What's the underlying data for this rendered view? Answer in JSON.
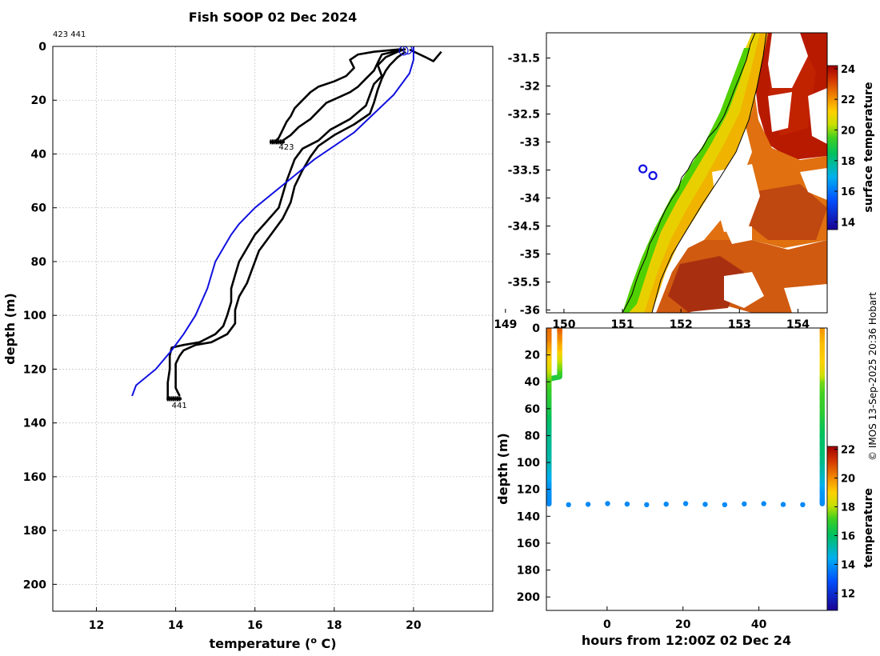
{
  "page": {
    "title": "Fish SOOP 02 Dec 2024",
    "deployment_ids": "423 441",
    "credit": "© IMOS 13-Sep-2025 20:36 Hobart"
  },
  "chart_data": [
    {
      "type": "line",
      "panel": "temperature-profile",
      "xlabel": "temperature (o C)",
      "ylabel": "depth (m)",
      "xlim": [
        10.9,
        22.0
      ],
      "ylim": [
        210,
        0
      ],
      "xticks": [
        "12",
        "14",
        "16",
        "18",
        "20"
      ],
      "yticks": [
        "0",
        "20",
        "40",
        "60",
        "80",
        "100",
        "120",
        "140",
        "160",
        "180",
        "200"
      ],
      "grid": true,
      "colors": {
        "profile": "#000000",
        "climatology": "#1010e0"
      },
      "series": [
        {
          "id": "descent-423",
          "values": [
            [
              19.7,
              1
            ],
            [
              19.0,
              2
            ],
            [
              18.6,
              3
            ],
            [
              18.4,
              5
            ],
            [
              18.5,
              8
            ],
            [
              18.3,
              11
            ],
            [
              18.0,
              13
            ],
            [
              17.6,
              15
            ],
            [
              17.4,
              17
            ],
            [
              17.2,
              20
            ],
            [
              17.0,
              23
            ],
            [
              16.9,
              26
            ],
            [
              16.8,
              28
            ],
            [
              16.7,
              31
            ],
            [
              16.6,
              34
            ],
            [
              16.5,
              35.5
            ]
          ]
        },
        {
          "id": "ascent-423",
          "values": [
            [
              16.7,
              35
            ],
            [
              16.9,
              33
            ],
            [
              17.1,
              30
            ],
            [
              17.4,
              27
            ],
            [
              17.6,
              24
            ],
            [
              17.8,
              21
            ],
            [
              18.1,
              19
            ],
            [
              18.4,
              17
            ],
            [
              18.6,
              15
            ],
            [
              18.8,
              12
            ],
            [
              19.0,
              9
            ],
            [
              19.1,
              6
            ],
            [
              19.2,
              3
            ],
            [
              19.5,
              2
            ],
            [
              19.8,
              1
            ]
          ]
        },
        {
          "id": "descent-441",
          "values": [
            [
              19.8,
              1
            ],
            [
              19.6,
              2
            ],
            [
              19.3,
              4
            ],
            [
              19.1,
              7
            ],
            [
              19.2,
              11
            ],
            [
              19.0,
              14
            ],
            [
              18.9,
              18
            ],
            [
              18.8,
              22
            ],
            [
              18.4,
              27
            ],
            [
              17.9,
              31
            ],
            [
              17.6,
              35
            ],
            [
              17.2,
              38
            ],
            [
              17.0,
              42
            ],
            [
              16.9,
              46
            ],
            [
              16.8,
              50
            ],
            [
              16.7,
              55
            ],
            [
              16.6,
              60
            ],
            [
              16.3,
              65
            ],
            [
              16.0,
              70
            ],
            [
              15.8,
              75
            ],
            [
              15.6,
              80
            ],
            [
              15.5,
              85
            ],
            [
              15.4,
              90
            ],
            [
              15.4,
              95
            ],
            [
              15.3,
              100
            ],
            [
              15.2,
              104
            ],
            [
              15.0,
              107
            ],
            [
              14.6,
              110
            ],
            [
              14.2,
              111
            ],
            [
              13.9,
              112
            ],
            [
              13.85,
              115
            ],
            [
              13.85,
              120
            ],
            [
              13.8,
              125
            ],
            [
              13.8,
              128
            ],
            [
              13.8,
              131
            ]
          ]
        },
        {
          "id": "ascent-441",
          "values": [
            [
              14.1,
              130
            ],
            [
              14.0,
              127
            ],
            [
              14.0,
              122
            ],
            [
              14.0,
              118
            ],
            [
              14.1,
              115
            ],
            [
              14.2,
              113
            ],
            [
              14.5,
              111
            ],
            [
              14.9,
              110
            ],
            [
              15.3,
              107
            ],
            [
              15.5,
              103
            ],
            [
              15.5,
              98
            ],
            [
              15.6,
              93
            ],
            [
              15.8,
              88
            ],
            [
              15.9,
              84
            ],
            [
              16.0,
              80
            ],
            [
              16.1,
              76
            ],
            [
              16.3,
              72
            ],
            [
              16.5,
              68
            ],
            [
              16.7,
              64
            ],
            [
              16.9,
              58
            ],
            [
              17.0,
              52
            ],
            [
              17.2,
              46
            ],
            [
              17.4,
              41
            ],
            [
              17.6,
              37
            ],
            [
              18.0,
              33
            ],
            [
              18.5,
              29
            ],
            [
              18.9,
              25
            ],
            [
              19.0,
              21
            ],
            [
              19.1,
              16
            ],
            [
              19.2,
              12
            ],
            [
              19.3,
              9
            ],
            [
              19.4,
              7
            ],
            [
              19.6,
              4
            ],
            [
              19.8,
              2
            ]
          ]
        },
        {
          "id": "surface-spike",
          "values": [
            [
              19.9,
              1.2
            ],
            [
              20.3,
              4
            ],
            [
              20.5,
              5.5
            ],
            [
              20.7,
              2
            ]
          ]
        },
        {
          "id": "climatology",
          "values": [
            [
              20.0,
              0
            ],
            [
              20.0,
              5
            ],
            [
              19.9,
              10
            ],
            [
              19.5,
              18
            ],
            [
              19.0,
              25
            ],
            [
              18.5,
              32
            ],
            [
              18.0,
              37
            ],
            [
              17.5,
              42
            ],
            [
              17.0,
              48
            ],
            [
              16.5,
              54
            ],
            [
              16.0,
              60
            ],
            [
              15.6,
              66
            ],
            [
              15.4,
              70
            ],
            [
              15.2,
              75
            ],
            [
              15.0,
              80
            ],
            [
              14.8,
              90
            ],
            [
              14.5,
              100
            ],
            [
              14.2,
              107
            ],
            [
              13.9,
              113
            ],
            [
              13.5,
              120
            ],
            [
              13.0,
              126
            ],
            [
              12.9,
              130
            ]
          ]
        }
      ],
      "annotations": [
        {
          "text": "423",
          "x": 16.6,
          "y": 36
        },
        {
          "text": "441",
          "x": 13.9,
          "y": 132
        }
      ],
      "markers": [
        {
          "kind": "circle",
          "x": 19.75,
          "y": 1,
          "color": "#1010e0"
        },
        {
          "kind": "circle",
          "x": 19.85,
          "y": 0.6,
          "color": "#1010e0"
        }
      ]
    },
    {
      "type": "heatmap",
      "panel": "sst-map",
      "colorbar_label": "surface temperature",
      "colorbar_range": [
        13.5,
        24.2
      ],
      "colorbar_ticks": [
        "14",
        "16",
        "18",
        "20",
        "22",
        "24"
      ],
      "xlim": [
        149.7,
        154.5
      ],
      "ylim": [
        -36.05,
        -31.05
      ],
      "xticks": [
        "149",
        "150",
        "151",
        "152",
        "153",
        "154"
      ],
      "yticks": [
        "-31.5",
        "-32",
        "-32.5",
        "-33",
        "-33.5",
        "-34",
        "-34.5",
        "-35",
        "-35.5",
        "-36"
      ],
      "deployments": [
        [
          151.35,
          -33.48
        ],
        [
          151.52,
          -33.6
        ]
      ],
      "deployment_color": "#1010e0"
    },
    {
      "type": "scatter",
      "panel": "depth-time",
      "xlabel": "hours from 12:00Z 02 Dec 24",
      "ylabel": "depth (m)",
      "colorbar_label": "temperature",
      "colorbar_range": [
        10.8,
        22.2
      ],
      "colorbar_ticks": [
        "12",
        "14",
        "16",
        "18",
        "20",
        "22"
      ],
      "xlim": [
        -16,
        58
      ],
      "ylim": [
        210,
        0
      ],
      "xticks": [
        "0",
        "20",
        "40"
      ],
      "yticks": [
        "0",
        "20",
        "40",
        "60",
        "80",
        "100",
        "120",
        "140",
        "160",
        "180",
        "200"
      ],
      "series": [
        {
          "id": "deployment-423",
          "values": [
            [
              -15.3,
              0,
              20.5
            ],
            [
              -15.3,
              5,
              20.5
            ],
            [
              -15.3,
              10,
              20.3
            ],
            [
              -15.3,
              15,
              20.2
            ],
            [
              -15.3,
              20,
              19.8
            ],
            [
              -15.3,
              25,
              19.3
            ],
            [
              -15.3,
              30,
              18.8
            ],
            [
              -15.3,
              35,
              17.6
            ],
            [
              -15.3,
              38,
              17.5
            ],
            [
              -14.5,
              37,
              16.6
            ],
            [
              -12.5,
              36,
              16.6
            ],
            [
              -12.5,
              32,
              17.2
            ],
            [
              -12.5,
              26,
              17.8
            ],
            [
              -12.5,
              20,
              18.6
            ],
            [
              -12.5,
              14,
              19.3
            ],
            [
              -12.5,
              8,
              19.8
            ],
            [
              -12.5,
              3,
              20.3
            ],
            [
              -12.5,
              0,
              20.5
            ]
          ]
        },
        {
          "id": "deployment-441",
          "values": [
            [
              -15.3,
              0,
              20.5
            ],
            [
              -15.3,
              10,
              20.2
            ],
            [
              -15.3,
              20,
              19.3
            ],
            [
              -15.3,
              30,
              18.6
            ],
            [
              -15.3,
              40,
              17.4
            ],
            [
              -15.3,
              50,
              16.9
            ],
            [
              -15.3,
              60,
              16.6
            ],
            [
              -15.3,
              70,
              16.0
            ],
            [
              -15.3,
              80,
              15.6
            ],
            [
              -15.3,
              90,
              15.4
            ],
            [
              -15.3,
              100,
              15.2
            ],
            [
              -15.3,
              110,
              14.6
            ],
            [
              -15.3,
              120,
              14.0
            ],
            [
              -15.3,
              126,
              13.9
            ],
            [
              -15.3,
              131,
              13.8
            ],
            [
              56.7,
              131,
              13.8
            ],
            [
              56.7,
              120,
              14.1
            ],
            [
              56.7,
              110,
              14.9
            ],
            [
              56.7,
              100,
              15.5
            ],
            [
              56.7,
              90,
              15.9
            ],
            [
              56.7,
              80,
              16.0
            ],
            [
              56.7,
              70,
              16.4
            ],
            [
              56.7,
              60,
              16.9
            ],
            [
              56.7,
              50,
              17.1
            ],
            [
              56.7,
              40,
              17.5
            ],
            [
              56.7,
              30,
              18.6
            ],
            [
              56.7,
              20,
              19.1
            ],
            [
              56.7,
              10,
              19.3
            ],
            [
              56.7,
              0,
              19.8
            ]
          ]
        }
      ]
    }
  ]
}
